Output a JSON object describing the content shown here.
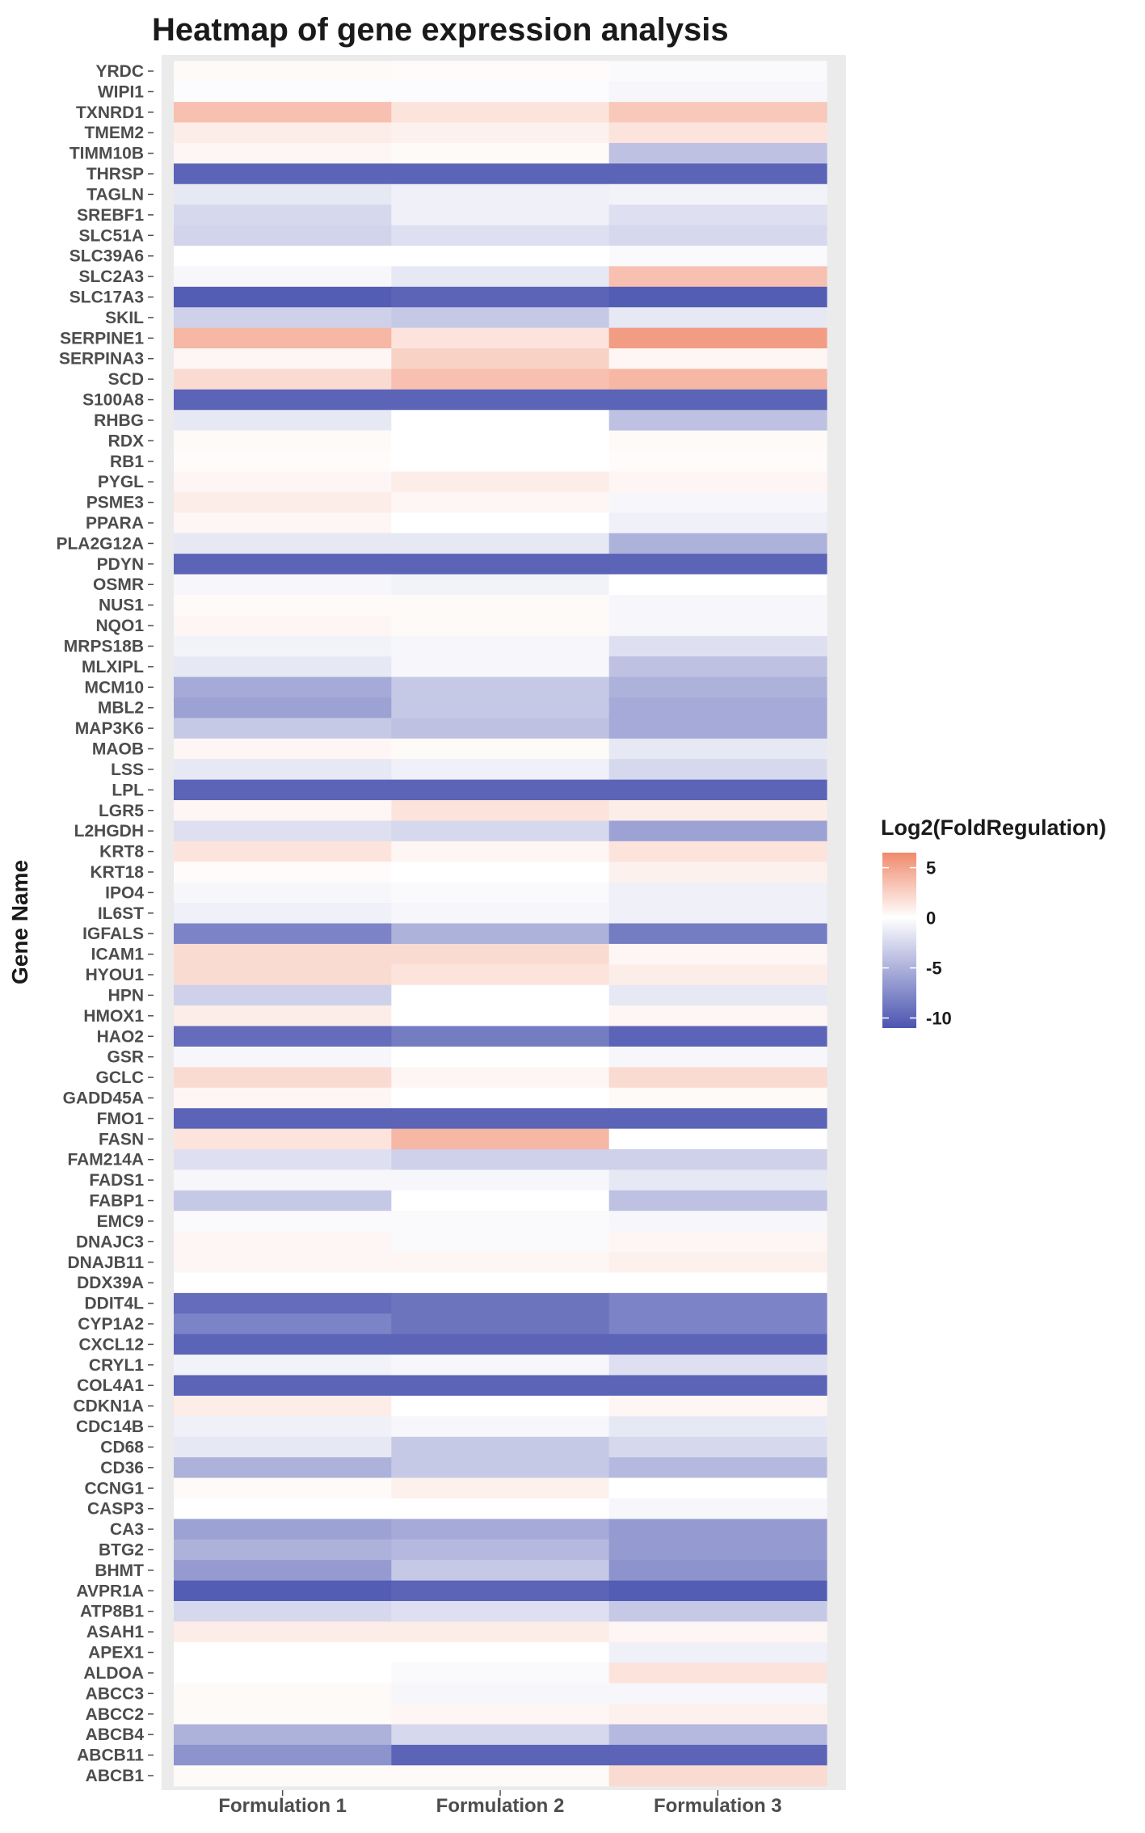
{
  "chart_data": {
    "type": "heatmap",
    "title": "Heatmap of gene expression analysis",
    "ylabel": "Gene Name",
    "xlabel": "",
    "columns": [
      "Formulation 1",
      "Formulation 2",
      "Formulation 3"
    ],
    "legend": {
      "title": "Log2(FoldRegulation)",
      "ticks": [
        "5",
        "0",
        "-5",
        "-10"
      ],
      "range": [
        -11,
        6.5
      ],
      "placement": "right",
      "low_color": "#4b55b0",
      "mid_color": "#ffffff",
      "high_color": "#f08a6c"
    },
    "background_color": "#ebebeb",
    "rows": [
      {
        "gene": "YRDC",
        "values": [
          0.3,
          0.2,
          -0.3
        ]
      },
      {
        "gene": "WIPI1",
        "values": [
          -0.2,
          -0.2,
          -0.5
        ]
      },
      {
        "gene": "TXNRD1",
        "values": [
          3.5,
          1.5,
          3.0
        ]
      },
      {
        "gene": "TMEM2",
        "values": [
          1.0,
          0.8,
          1.5
        ]
      },
      {
        "gene": "TIMM10B",
        "values": [
          0.5,
          0.3,
          -4.0
        ]
      },
      {
        "gene": "THRSP",
        "values": [
          -10,
          -10,
          -10
        ]
      },
      {
        "gene": "TAGLN",
        "values": [
          -1.5,
          -1.0,
          -0.8
        ]
      },
      {
        "gene": "SREBF1",
        "values": [
          -2.5,
          -1.0,
          -2.0
        ]
      },
      {
        "gene": "SLC51A",
        "values": [
          -2.8,
          -2.0,
          -2.5
        ]
      },
      {
        "gene": "SLC39A6",
        "values": [
          0.0,
          0.0,
          -0.3
        ]
      },
      {
        "gene": "SLC2A3",
        "values": [
          -0.5,
          -1.5,
          3.5
        ]
      },
      {
        "gene": "SLC17A3",
        "values": [
          -10.5,
          -10,
          -10.5
        ]
      },
      {
        "gene": "SKIL",
        "values": [
          -3.0,
          -3.5,
          -1.5
        ]
      },
      {
        "gene": "SERPINE1",
        "values": [
          4.0,
          1.5,
          5.5
        ]
      },
      {
        "gene": "SERPINA3",
        "values": [
          0.5,
          2.5,
          0.5
        ]
      },
      {
        "gene": "SCD",
        "values": [
          2.0,
          3.5,
          4.0
        ]
      },
      {
        "gene": "S100A8",
        "values": [
          -10,
          -10,
          -10
        ]
      },
      {
        "gene": "RHBG",
        "values": [
          -1.5,
          0.0,
          -4.0
        ]
      },
      {
        "gene": "RDX",
        "values": [
          0.3,
          0.0,
          0.3
        ]
      },
      {
        "gene": "RB1",
        "values": [
          0.2,
          0.0,
          0.2
        ]
      },
      {
        "gene": "PYGL",
        "values": [
          0.5,
          1.0,
          0.5
        ]
      },
      {
        "gene": "PSME3",
        "values": [
          1.0,
          0.5,
          -0.5
        ]
      },
      {
        "gene": "PPARA",
        "values": [
          0.5,
          0.0,
          -1.0
        ]
      },
      {
        "gene": "PLA2G12A",
        "values": [
          -1.5,
          -1.5,
          -5.0
        ]
      },
      {
        "gene": "PDYN",
        "values": [
          -10,
          -10,
          -10
        ]
      },
      {
        "gene": "OSMR",
        "values": [
          -0.5,
          -0.8,
          0.0
        ]
      },
      {
        "gene": "NUS1",
        "values": [
          0.3,
          0.3,
          -0.5
        ]
      },
      {
        "gene": "NQO1",
        "values": [
          0.5,
          0.3,
          -0.5
        ]
      },
      {
        "gene": "MRPS18B",
        "values": [
          -0.8,
          -0.5,
          -2.0
        ]
      },
      {
        "gene": "MLXIPL",
        "values": [
          -1.5,
          -0.5,
          -4.0
        ]
      },
      {
        "gene": "MCM10",
        "values": [
          -5.5,
          -3.5,
          -5.0
        ]
      },
      {
        "gene": "MBL2",
        "values": [
          -6.0,
          -3.5,
          -5.5
        ]
      },
      {
        "gene": "MAP3K6",
        "values": [
          -3.5,
          -4.0,
          -5.5
        ]
      },
      {
        "gene": "MAOB",
        "values": [
          0.5,
          0.3,
          -1.5
        ]
      },
      {
        "gene": "LSS",
        "values": [
          -1.5,
          -1.0,
          -2.5
        ]
      },
      {
        "gene": "LPL",
        "values": [
          -10,
          -10,
          -10
        ]
      },
      {
        "gene": "LGR5",
        "values": [
          0.5,
          1.5,
          1.0
        ]
      },
      {
        "gene": "L2HGDH",
        "values": [
          -2.0,
          -2.5,
          -6.0
        ]
      },
      {
        "gene": "KRT8",
        "values": [
          1.5,
          0.5,
          1.5
        ]
      },
      {
        "gene": "KRT18",
        "values": [
          0.2,
          0.0,
          0.8
        ]
      },
      {
        "gene": "IPO4",
        "values": [
          -0.5,
          -0.3,
          -1.0
        ]
      },
      {
        "gene": "IL6ST",
        "values": [
          -1.0,
          -0.5,
          -1.0
        ]
      },
      {
        "gene": "IGFALS",
        "values": [
          -8.0,
          -5.0,
          -8.5
        ]
      },
      {
        "gene": "ICAM1",
        "values": [
          2.0,
          2.0,
          0.5
        ]
      },
      {
        "gene": "HYOU1",
        "values": [
          2.0,
          1.5,
          1.0
        ]
      },
      {
        "gene": "HPN",
        "values": [
          -3.0,
          0.0,
          -1.5
        ]
      },
      {
        "gene": "HMOX1",
        "values": [
          1.0,
          0.0,
          0.5
        ]
      },
      {
        "gene": "HAO2",
        "values": [
          -9.5,
          -8.5,
          -10
        ]
      },
      {
        "gene": "GSR",
        "values": [
          -0.5,
          0.0,
          -0.5
        ]
      },
      {
        "gene": "GCLC",
        "values": [
          2.0,
          0.5,
          2.0
        ]
      },
      {
        "gene": "GADD45A",
        "values": [
          0.5,
          0.0,
          0.3
        ]
      },
      {
        "gene": "FMO1",
        "values": [
          -10,
          -10,
          -10
        ]
      },
      {
        "gene": "FASN",
        "values": [
          1.5,
          4.0,
          0.0
        ]
      },
      {
        "gene": "FAM214A",
        "values": [
          -2.0,
          -3.0,
          -3.0
        ]
      },
      {
        "gene": "FADS1",
        "values": [
          -0.5,
          -0.5,
          -1.5
        ]
      },
      {
        "gene": "FABP1",
        "values": [
          -3.5,
          0.0,
          -4.0
        ]
      },
      {
        "gene": "EMC9",
        "values": [
          -0.3,
          -0.3,
          -0.5
        ]
      },
      {
        "gene": "DNAJC3",
        "values": [
          0.5,
          -0.3,
          0.5
        ]
      },
      {
        "gene": "DNAJB11",
        "values": [
          0.5,
          0.5,
          0.8
        ]
      },
      {
        "gene": "DDX39A",
        "values": [
          0.0,
          0.0,
          0.0
        ]
      },
      {
        "gene": "DDIT4L",
        "values": [
          -9.5,
          -9.0,
          -8.0
        ]
      },
      {
        "gene": "CYP1A2",
        "values": [
          -8.0,
          -9.0,
          -8.0
        ]
      },
      {
        "gene": "CXCL12",
        "values": [
          -10,
          -10,
          -10
        ]
      },
      {
        "gene": "CRYL1",
        "values": [
          -0.8,
          -0.5,
          -2.0
        ]
      },
      {
        "gene": "COL4A1",
        "values": [
          -10,
          -10,
          -10
        ]
      },
      {
        "gene": "CDKN1A",
        "values": [
          1.0,
          0.0,
          0.5
        ]
      },
      {
        "gene": "CDC14B",
        "values": [
          -1.0,
          -0.5,
          -1.5
        ]
      },
      {
        "gene": "CD68",
        "values": [
          -1.5,
          -3.5,
          -2.5
        ]
      },
      {
        "gene": "CD36",
        "values": [
          -5.0,
          -3.5,
          -4.5
        ]
      },
      {
        "gene": "CCNG1",
        "values": [
          0.3,
          0.8,
          0.0
        ]
      },
      {
        "gene": "CASP3",
        "values": [
          0.0,
          0.0,
          -0.5
        ]
      },
      {
        "gene": "CA3",
        "values": [
          -6.0,
          -5.5,
          -6.5
        ]
      },
      {
        "gene": "BTG2",
        "values": [
          -5.0,
          -4.5,
          -6.5
        ]
      },
      {
        "gene": "BHMT",
        "values": [
          -6.5,
          -3.5,
          -7.0
        ]
      },
      {
        "gene": "AVPR1A",
        "values": [
          -10.5,
          -10,
          -10.5
        ]
      },
      {
        "gene": "ATP8B1",
        "values": [
          -2.5,
          -2.0,
          -3.5
        ]
      },
      {
        "gene": "ASAH1",
        "values": [
          1.0,
          1.0,
          0.5
        ]
      },
      {
        "gene": "APEX1",
        "values": [
          0.0,
          0.0,
          -1.0
        ]
      },
      {
        "gene": "ALDOA",
        "values": [
          0.0,
          -0.3,
          1.5
        ]
      },
      {
        "gene": "ABCC3",
        "values": [
          0.3,
          -0.5,
          -0.5
        ]
      },
      {
        "gene": "ABCC2",
        "values": [
          0.3,
          0.5,
          0.8
        ]
      },
      {
        "gene": "ABCB4",
        "values": [
          -5.0,
          -2.5,
          -4.5
        ]
      },
      {
        "gene": "ABCB11",
        "values": [
          -7.0,
          -10,
          -10
        ]
      },
      {
        "gene": "ABCB1",
        "values": [
          0.3,
          0.3,
          2.0
        ]
      }
    ]
  }
}
